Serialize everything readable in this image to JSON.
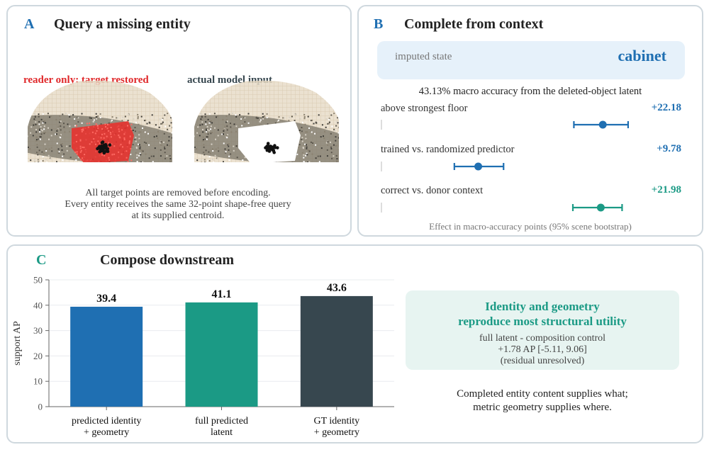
{
  "panel_a": {
    "letter": "A",
    "title": "Query a missing entity",
    "left_caption": "reader only: target restored",
    "right_caption": "actual model input",
    "description": [
      "All target points are removed before encoding.",
      "Every entity receives the same 32-point shape-free query",
      "at its supplied centroid."
    ]
  },
  "panel_b": {
    "letter": "B",
    "title": "Complete from context",
    "imputed_label": "imputed state",
    "imputed_value": "cabinet",
    "summary": "43.13% macro accuracy from the deleted-object latent",
    "effects": [
      {
        "label": "above strongest floor",
        "value_text": "+22.18",
        "point": 22.18,
        "ci": [
          19.3,
          24.7
        ],
        "color": "#1f6fb2"
      },
      {
        "label": "trained vs. randomized predictor",
        "value_text": "+9.78",
        "point": 9.78,
        "ci": [
          7.4,
          12.3
        ],
        "color": "#1f6fb2"
      },
      {
        "label": "correct vs. donor context",
        "value_text": "+21.98",
        "point": 21.98,
        "ci": [
          19.2,
          24.1
        ],
        "color": "#1b9a85"
      }
    ],
    "footnote": "Effect in macro-accuracy points (95% scene bootstrap)"
  },
  "panel_c": {
    "letter": "C",
    "title": "Compose downstream",
    "box_title": [
      "Identity and geometry",
      "reproduce most structural utility"
    ],
    "box_lines": [
      "full latent - composition control",
      "+1.78 AP [-5.11, 9.06]",
      "(residual unresolved)"
    ],
    "note": [
      "Completed entity content supplies what;",
      "metric geometry supplies where."
    ]
  },
  "colors": {
    "blue": "#1f6fb2",
    "teal": "#1b9a85",
    "slate": "#37474f",
    "red": "#e0282a",
    "border": "#cfd8de"
  },
  "chart_data": {
    "type": "bar",
    "categories": [
      [
        "predicted identity",
        "+ geometry"
      ],
      [
        "full predicted",
        "latent"
      ],
      [
        "GT identity",
        "+ geometry"
      ]
    ],
    "values": [
      39.4,
      41.1,
      43.6
    ],
    "value_labels": [
      "39.4",
      "41.1",
      "43.6"
    ],
    "colors": [
      "#1f6fb2",
      "#1b9a85",
      "#37474f"
    ],
    "ylabel": "support AP",
    "ylim": [
      0,
      50
    ],
    "yticks": [
      0,
      10,
      20,
      30,
      40,
      50
    ],
    "grid": true
  }
}
